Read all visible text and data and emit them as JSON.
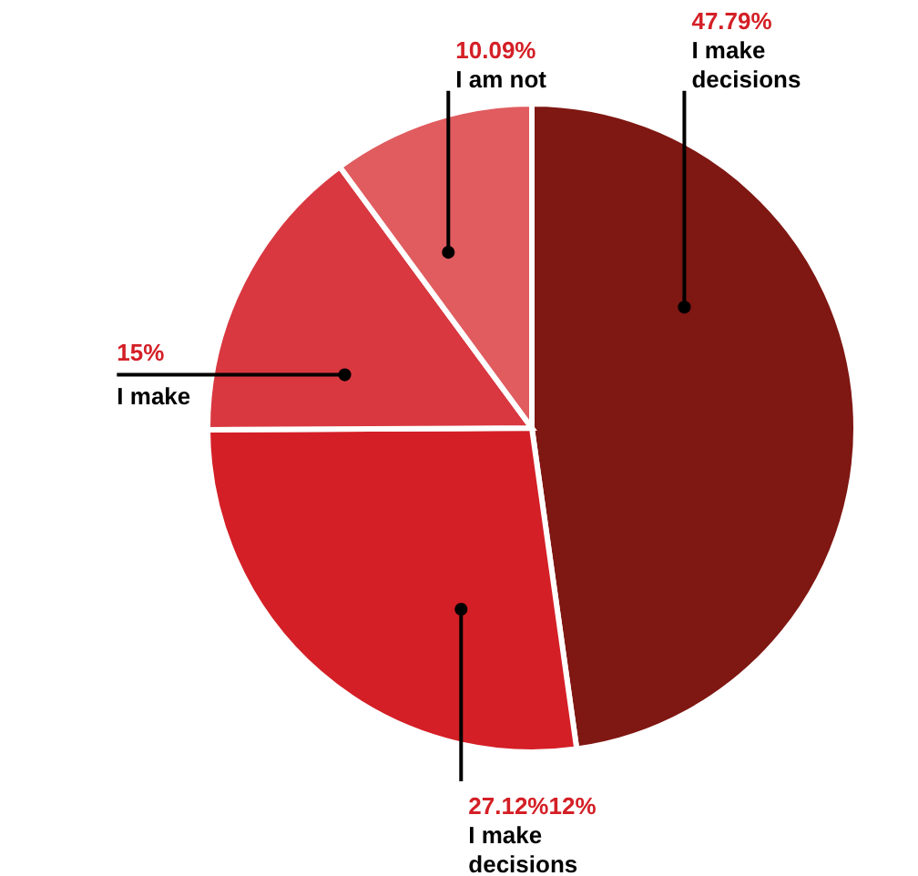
{
  "chart_data": {
    "type": "pie",
    "categories": [
      "I make decisions",
      "I make decisions",
      "I make",
      "I am not"
    ],
    "values": [
      47.79,
      27.12,
      15,
      10.09
    ],
    "colors": [
      "#7f1712",
      "#d41f26",
      "#d93840",
      "#e05c5f"
    ],
    "value_labels": [
      "47.79%",
      "27.12%12%",
      "15%",
      "10.09%"
    ]
  }
}
